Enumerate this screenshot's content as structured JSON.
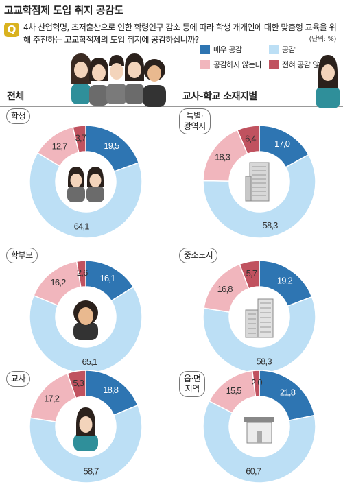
{
  "title": "고교학점제 도입 취지 공감도",
  "question_badge": "Q",
  "question": "4차 산업혁명, 초저출산으로 인한 학령인구 감소 등에 따라 학생 개개인에 대한 맞춤형 교육을 위해 추진하는 고교학점제의 도입 취지에 공감하십니까?",
  "unit": "(단위: %)",
  "sections": {
    "left": "전체",
    "right": "교사-학교 소재지별"
  },
  "colors": {
    "very": "#2e75b2",
    "agree": "#bcdff5",
    "disagree": "#f1b6bd",
    "strong_disagree": "#c0525f"
  },
  "chart_data": [
    {
      "type": "pie",
      "label": "학생",
      "categories": [
        "매우 공감",
        "공감",
        "공감하지 않는다",
        "전혀 공감 않는다"
      ],
      "values": [
        19.5,
        64.1,
        12.7,
        3.7
      ],
      "value_labels": [
        "19,5",
        "64,1",
        "12,7",
        "3,7"
      ],
      "icon": "students-icon"
    },
    {
      "type": "pie",
      "label": "학부모",
      "categories": [
        "매우 공감",
        "공감",
        "공감하지 않는다",
        "전혀 공감 않는다"
      ],
      "values": [
        16.1,
        65.1,
        16.2,
        2.6
      ],
      "value_labels": [
        "16,1",
        "65,1",
        "16,2",
        "2,6"
      ],
      "icon": "parent-icon"
    },
    {
      "type": "pie",
      "label": "교사",
      "categories": [
        "매우 공감",
        "공감",
        "공감하지 않는다",
        "전혀 공감 않는다"
      ],
      "values": [
        18.8,
        58.7,
        17.2,
        5.3
      ],
      "value_labels": [
        "18,8",
        "58,7",
        "17,2",
        "5,3"
      ],
      "icon": "teacher-icon"
    },
    {
      "type": "pie",
      "label": "특별·\n광역시",
      "categories": [
        "매우 공감",
        "공감",
        "공감하지 않는다",
        "전혀 공감 않는다"
      ],
      "values": [
        17.0,
        58.3,
        18.3,
        6.4
      ],
      "value_labels": [
        "17,0",
        "58,3",
        "18,3",
        "6,4"
      ],
      "icon": "skyscraper-icon"
    },
    {
      "type": "pie",
      "label": "중소도시",
      "categories": [
        "매우 공감",
        "공감",
        "공감하지 않는다",
        "전혀 공감 않는다"
      ],
      "values": [
        19.2,
        58.3,
        16.8,
        5.7
      ],
      "value_labels": [
        "19,2",
        "58,3",
        "16,8",
        "5,7"
      ],
      "icon": "city-buildings-icon"
    },
    {
      "type": "pie",
      "label": "읍·면\n지역",
      "categories": [
        "매우 공감",
        "공감",
        "공감하지 않는다",
        "전혀 공감 않는다"
      ],
      "values": [
        21.8,
        60.7,
        15.5,
        2.0
      ],
      "value_labels": [
        "21,8",
        "60,7",
        "15,5",
        "2,0"
      ],
      "icon": "house-icon"
    }
  ],
  "legend": [
    "매우 공감",
    "공감",
    "공감하지 않는다",
    "전혀 공감 않는다"
  ]
}
